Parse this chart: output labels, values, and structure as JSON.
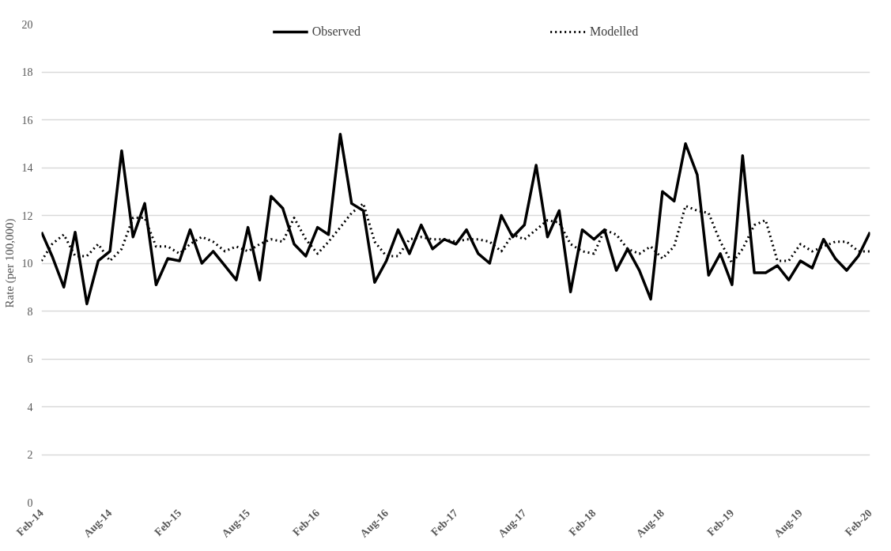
{
  "chart_data": {
    "type": "line",
    "ylabel": "Rate (per 100,000)",
    "x": [
      "2014-02",
      "2014-03",
      "2014-04",
      "2014-05",
      "2014-06",
      "2014-07",
      "2014-08",
      "2014-09",
      "2014-10",
      "2014-11",
      "2014-12",
      "2015-01",
      "2015-02",
      "2015-03",
      "2015-04",
      "2015-05",
      "2015-06",
      "2015-07",
      "2015-08",
      "2015-09",
      "2015-10",
      "2015-11",
      "2015-12",
      "2016-01",
      "2016-02",
      "2016-03",
      "2016-04",
      "2016-05",
      "2016-06",
      "2016-07",
      "2016-08",
      "2016-09",
      "2016-10",
      "2016-11",
      "2016-12",
      "2017-01",
      "2017-02",
      "2017-03",
      "2017-04",
      "2017-05",
      "2017-06",
      "2017-07",
      "2017-08",
      "2017-09",
      "2017-10",
      "2017-11",
      "2017-12",
      "2018-01",
      "2018-02",
      "2018-03",
      "2018-04",
      "2018-05",
      "2018-06",
      "2018-07",
      "2018-08",
      "2018-09",
      "2018-10",
      "2018-11",
      "2018-12",
      "2019-01",
      "2019-02",
      "2019-03",
      "2019-04",
      "2019-05",
      "2019-06",
      "2019-07",
      "2019-08",
      "2019-09",
      "2019-10",
      "2019-11",
      "2019-12",
      "2020-01",
      "2020-02"
    ],
    "series": [
      {
        "name": "Observed",
        "color": "#000000",
        "line_style": "solid",
        "values": [
          11.3,
          10.3,
          9.0,
          11.3,
          8.3,
          10.1,
          10.5,
          14.7,
          11.1,
          12.5,
          9.1,
          10.2,
          10.1,
          11.4,
          10.0,
          10.5,
          9.9,
          9.3,
          11.5,
          9.3,
          12.8,
          12.3,
          10.8,
          10.3,
          11.5,
          11.2,
          15.4,
          12.5,
          12.2,
          9.2,
          10.1,
          11.4,
          10.4,
          11.6,
          10.6,
          11.0,
          10.8,
          11.4,
          10.4,
          10.0,
          12.0,
          11.1,
          11.6,
          14.1,
          11.1,
          12.2,
          8.8,
          11.4,
          11.0,
          11.4,
          9.7,
          10.6,
          9.7,
          8.5,
          13.0,
          12.6,
          15.0,
          13.7,
          9.5,
          10.4,
          9.1,
          14.5,
          9.6,
          9.6,
          9.9,
          9.3,
          10.1,
          9.8,
          11.0,
          10.2,
          9.7,
          10.3,
          11.3
        ]
      },
      {
        "name": "Modelled",
        "color": "#000000",
        "line_style": "dotted",
        "values": [
          10.1,
          10.8,
          11.2,
          10.3,
          10.3,
          10.8,
          10.1,
          10.6,
          11.9,
          11.9,
          10.7,
          10.7,
          10.4,
          10.8,
          11.1,
          10.9,
          10.5,
          10.7,
          10.5,
          10.8,
          11.0,
          10.9,
          11.9,
          11.0,
          10.4,
          10.9,
          11.5,
          12.1,
          12.5,
          10.9,
          10.3,
          10.3,
          11.0,
          11.1,
          11.0,
          11.0,
          10.9,
          11.0,
          11.0,
          10.9,
          10.5,
          11.2,
          11.0,
          11.4,
          11.8,
          11.7,
          10.8,
          10.5,
          10.4,
          11.4,
          11.2,
          10.6,
          10.4,
          10.7,
          10.2,
          10.7,
          12.4,
          12.2,
          12.1,
          10.9,
          10.0,
          10.6,
          11.6,
          11.8,
          10.1,
          10.1,
          10.8,
          10.5,
          10.7,
          10.9,
          10.9,
          10.5,
          10.5
        ]
      }
    ],
    "xlim": [
      "2014-02",
      "2020-02"
    ],
    "xticks": [
      {
        "value": "2014-02",
        "label": "Feb-14"
      },
      {
        "value": "2014-08",
        "label": "Aug-14"
      },
      {
        "value": "2015-02",
        "label": "Feb-15"
      },
      {
        "value": "2015-08",
        "label": "Aug-15"
      },
      {
        "value": "2016-02",
        "label": "Feb-16"
      },
      {
        "value": "2016-08",
        "label": "Aug-16"
      },
      {
        "value": "2017-02",
        "label": "Feb-17"
      },
      {
        "value": "2017-08",
        "label": "Aug-17"
      },
      {
        "value": "2018-02",
        "label": "Feb-18"
      },
      {
        "value": "2018-08",
        "label": "Aug-18"
      },
      {
        "value": "2019-02",
        "label": "Feb-19"
      },
      {
        "value": "2019-08",
        "label": "Aug-19"
      },
      {
        "value": "2020-02",
        "label": "Feb-20"
      }
    ],
    "ylim": [
      0,
      20
    ],
    "yticks": [
      0,
      2,
      4,
      6,
      8,
      10,
      12,
      14,
      16,
      18,
      20
    ],
    "grid": "y",
    "legend": "top",
    "marker": "none"
  }
}
